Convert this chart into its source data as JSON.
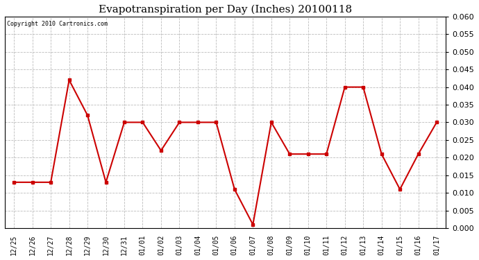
{
  "title": "Evapotranspiration per Day (Inches) 20100118",
  "copyright_text": "Copyright 2010 Cartronics.com",
  "labels": [
    "12/25",
    "12/26",
    "12/27",
    "12/28",
    "12/29",
    "12/30",
    "12/31",
    "01/01",
    "01/02",
    "01/03",
    "01/04",
    "01/05",
    "01/06",
    "01/07",
    "01/08",
    "01/09",
    "01/10",
    "01/11",
    "01/12",
    "01/13",
    "01/14",
    "01/15",
    "01/16",
    "01/17"
  ],
  "values": [
    0.013,
    0.013,
    0.013,
    0.042,
    0.032,
    0.013,
    0.03,
    0.03,
    0.022,
    0.03,
    0.03,
    0.03,
    0.011,
    0.001,
    0.03,
    0.021,
    0.021,
    0.021,
    0.04,
    0.04,
    0.021,
    0.011,
    0.021,
    0.03
  ],
  "line_color": "#cc0000",
  "marker": "s",
  "marker_size": 3,
  "line_width": 1.5,
  "ylim": [
    0.0,
    0.06
  ],
  "ytick_step": 0.005,
  "grid_color": "#bbbbbb",
  "grid_style": "--",
  "bg_color": "#ffffff",
  "plot_bg_color": "#ffffff",
  "title_fontsize": 11,
  "copyright_fontsize": 6,
  "tick_fontsize": 7,
  "ytick_fontsize": 8
}
